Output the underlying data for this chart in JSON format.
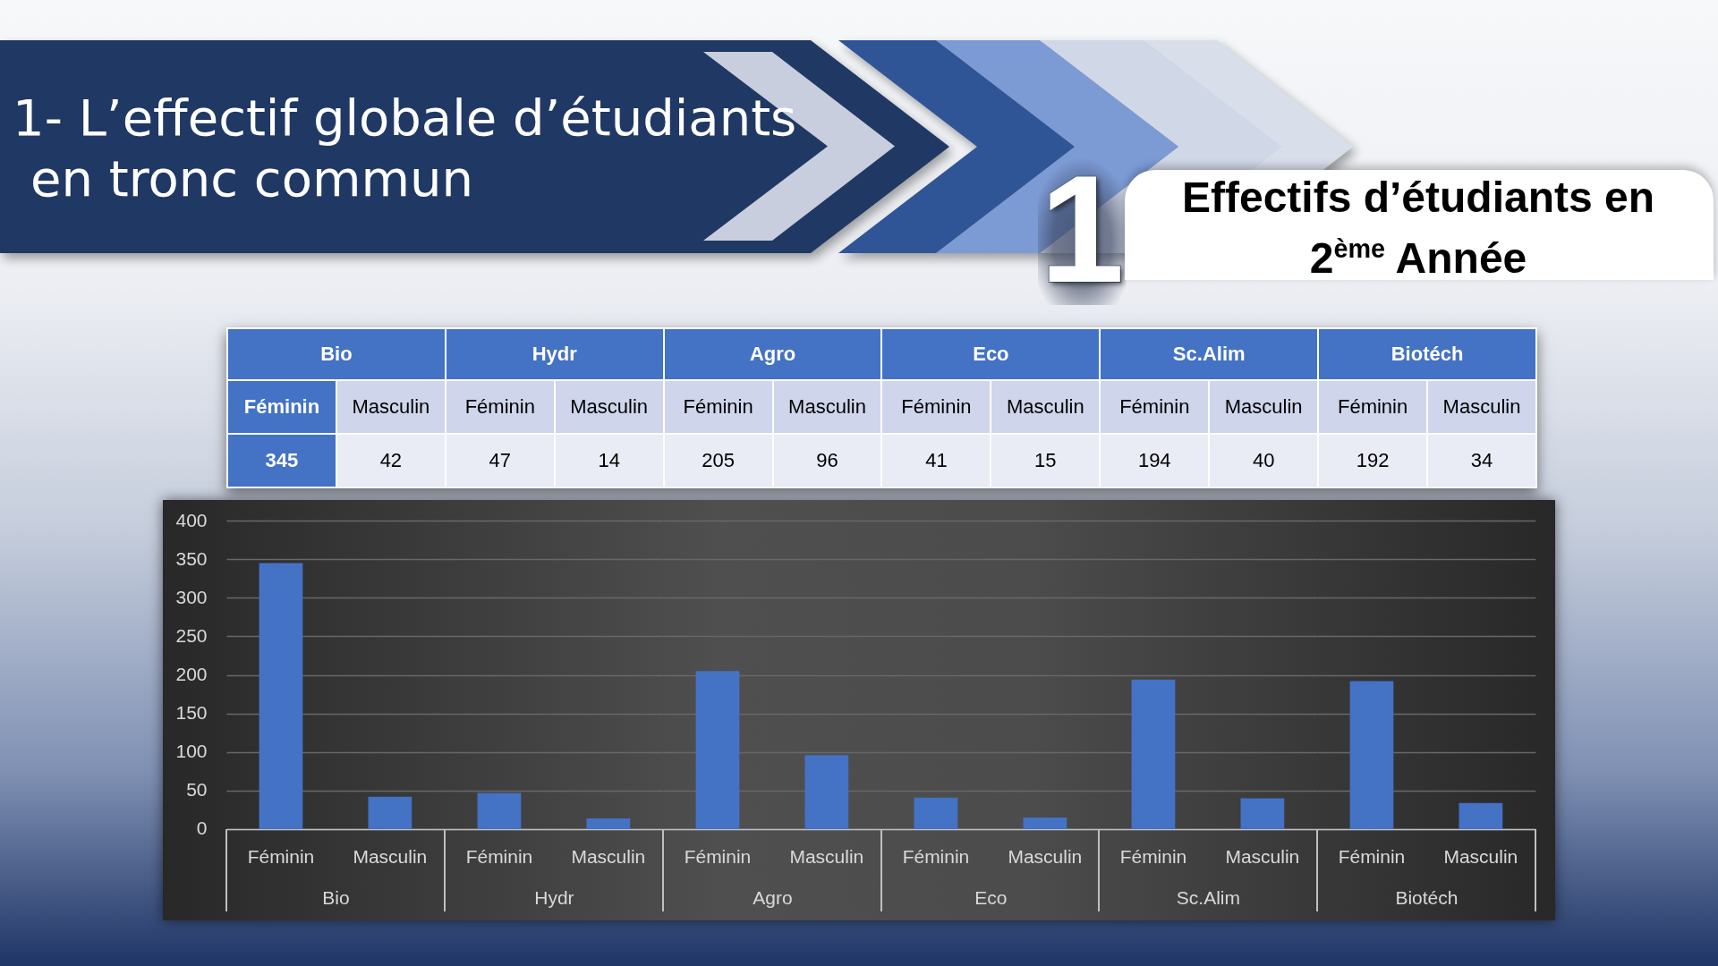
{
  "chart_data": [
    {
      "type": "bar",
      "title": "1- L’effectif globale d’étudiants en tronc commun",
      "annotations": [
        "1"
      ],
      "xlabel": "Bio",
      "categories": [
        "Féminin",
        "Masculin"
      ],
      "values": [
        345,
        42
      ],
      "color": "#4472c4",
      "ylim": [
        0,
        400
      ],
      "yticks": [
        0,
        50,
        100,
        150,
        200,
        250,
        300,
        350,
        400
      ],
      "grid": "y",
      "data_labels": true
    },
    {
      "type": "bar",
      "xlabel": "Hydr",
      "categories": [
        "Féminin",
        "Masculin"
      ],
      "values": [
        47,
        14
      ],
      "color": "#4472c4",
      "ylim": [
        0,
        400
      ],
      "yticks": [
        0,
        50,
        100,
        150,
        200,
        250,
        300,
        350,
        400
      ],
      "grid": "y",
      "data_labels": true,
      "tick_labels": "x"
    },
    {
      "type": "bar",
      "xlabel": "Agro",
      "categories": [
        "Féminin",
        "Masculin"
      ],
      "values": [
        205,
        96
      ],
      "color": "#4472c4",
      "ylim": [
        0,
        400
      ],
      "yticks": [
        0,
        50,
        100,
        150,
        200,
        250,
        300,
        350,
        400
      ],
      "grid": "y",
      "data_labels": true,
      "tick_labels": "x"
    },
    {
      "type": "bar",
      "xlabel": "Eco",
      "categories": [
        "Féminin",
        "Masculin"
      ],
      "values": [
        41,
        15
      ],
      "color": "#4472c4",
      "ylim": [
        0,
        400
      ],
      "yticks": [
        0,
        50,
        100,
        150,
        200,
        250,
        300,
        350,
        400
      ],
      "grid": "y",
      "data_labels": true,
      "tick_labels": "x"
    },
    {
      "type": "bar",
      "xlabel": "Sc.Alim",
      "categories": [
        "Féminin",
        "Masculin"
      ],
      "values": [
        194,
        40
      ],
      "color": "#4472c4",
      "ylim": [
        0,
        400
      ],
      "yticks": [
        0,
        50,
        100,
        150,
        200,
        250,
        300,
        350,
        400
      ],
      "grid": "y",
      "data_labels": true,
      "tick_labels": "x"
    },
    {
      "type": "bar",
      "subtitle": "Effectifs d’étudiants en 2$^{ème}$ Année",
      "xlabel": "Biotéch",
      "categories": [
        "Féminin",
        "Masculin"
      ],
      "values": [
        192,
        34
      ],
      "color": "#4472c4",
      "ylim": [
        0,
        400
      ],
      "yticks": [
        0,
        50,
        100,
        150,
        200,
        250,
        300,
        350,
        400
      ],
      "grid": "y",
      "data_labels": true,
      "tick_labels": "x"
    }
  ]
}
